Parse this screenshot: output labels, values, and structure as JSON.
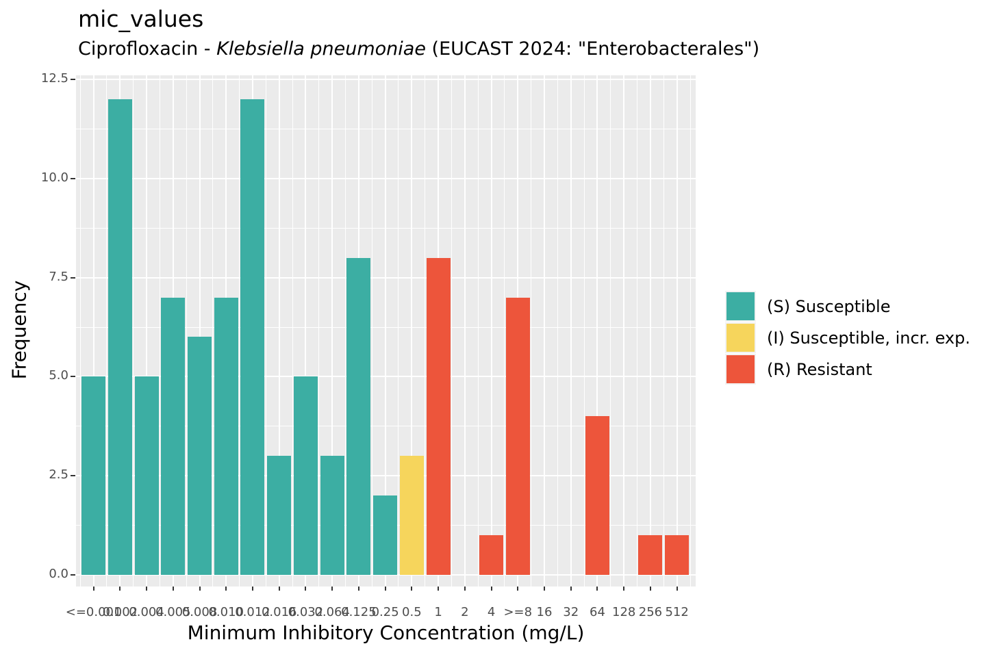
{
  "title": "mic_values",
  "subtitle": {
    "prefix": "Ciprofloxacin - ",
    "organism_italic": "Klebsiella pneumoniae",
    "suffix": " (EUCAST 2024: \"Enterobacterales\")"
  },
  "axes": {
    "x_title": "Minimum Inhibitory Concentration (mg/L)",
    "y_title": "Frequency",
    "y_tick_labels": [
      "0.0",
      "2.5",
      "5.0",
      "7.5",
      "10.0",
      "12.5"
    ]
  },
  "legend": {
    "position": "right",
    "items": [
      {
        "sir": "S",
        "label": "(S) Susceptible",
        "color": "#3CAEA3"
      },
      {
        "sir": "I",
        "label": "(I) Susceptible, incr. exp.",
        "color": "#F6D55C"
      },
      {
        "sir": "R",
        "label": "(R) Resistant",
        "color": "#ED553B"
      }
    ]
  },
  "chart_data": {
    "type": "bar",
    "title": "mic_values",
    "subtitle": "Ciprofloxacin - Klebsiella pneumoniae (EUCAST 2024: \"Enterobacterales\")",
    "xlabel": "Minimum Inhibitory Concentration (mg/L)",
    "ylabel": "Frequency",
    "categories": [
      "<=0.001",
      "0.002",
      "0.004",
      "0.005",
      "0.008",
      "0.010",
      "0.012",
      "0.016",
      "0.032",
      "0.064",
      "0.125",
      "0.25",
      "0.5",
      "1",
      "2",
      "4",
      ">=8",
      "16",
      "32",
      "64",
      "128",
      "256",
      "512"
    ],
    "values": [
      5,
      12,
      5,
      7,
      6,
      7,
      12,
      3,
      5,
      3,
      8,
      2,
      3,
      8,
      0,
      1,
      7,
      0,
      0,
      4,
      0,
      1,
      1
    ],
    "interpretation": [
      "S",
      "S",
      "S",
      "S",
      "S",
      "S",
      "S",
      "S",
      "S",
      "S",
      "S",
      "S",
      "I",
      "R",
      "R",
      "R",
      "R",
      "R",
      "R",
      "R",
      "R",
      "R",
      "R"
    ],
    "colors": {
      "S": "#3CAEA3",
      "I": "#F6D55C",
      "R": "#ED553B"
    },
    "total_isolates": 100,
    "y_ticks": [
      0,
      2.5,
      5,
      7.5,
      10,
      12.5
    ],
    "y_minor_ticks": [
      1.25,
      3.75,
      6.25,
      8.75,
      11.25
    ],
    "ylim": [
      0,
      12.5
    ],
    "grid": true,
    "legend_position": "right",
    "panel_background": "#EBEBEB"
  }
}
